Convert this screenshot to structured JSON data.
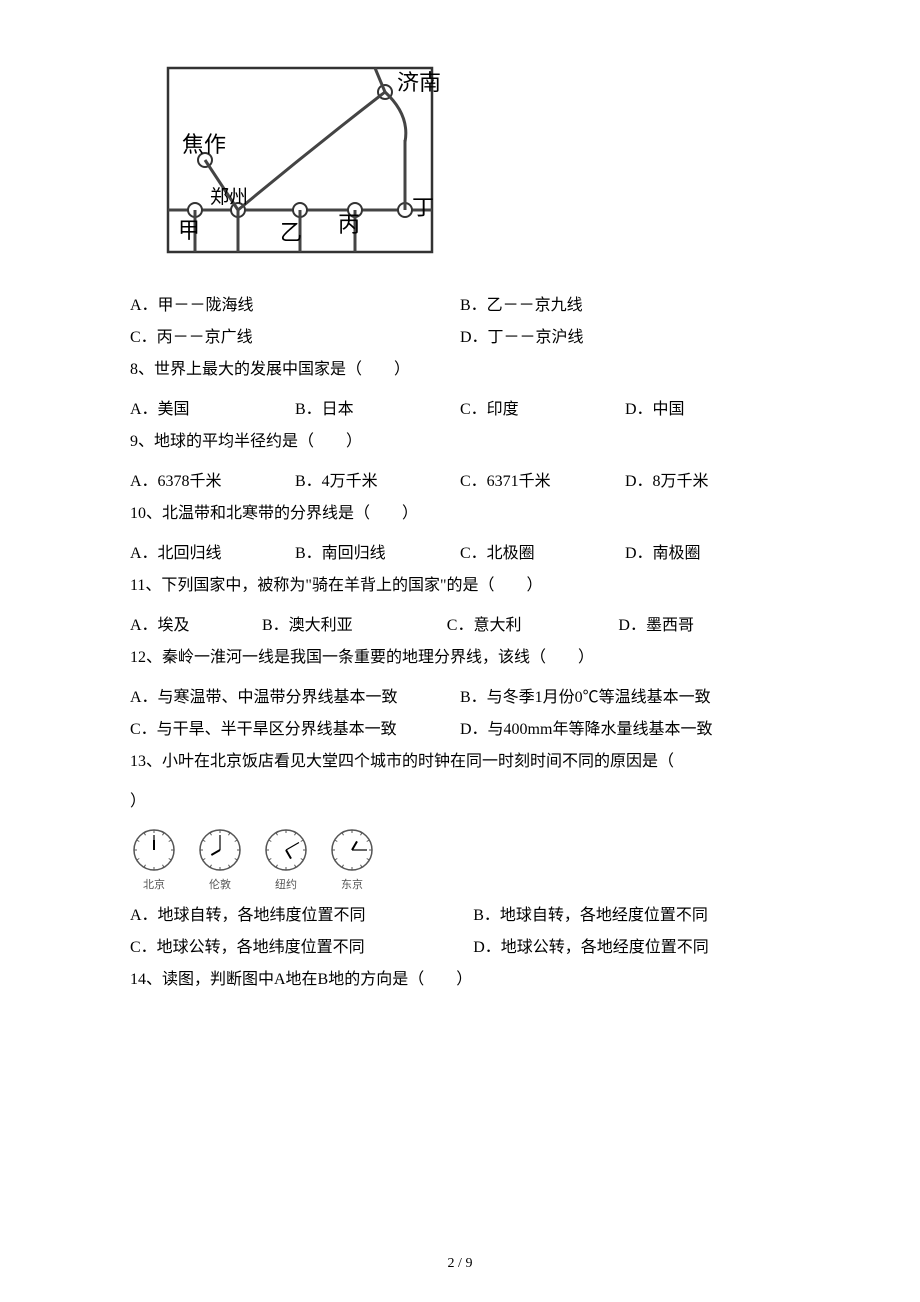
{
  "map": {
    "labels": {
      "jinan": "济南",
      "jiaozuo": "焦作",
      "zhengzhou": "郑州",
      "jia": "甲",
      "yi": "乙",
      "bing": "丙",
      "ding": "丁"
    },
    "frame_stroke": "#333333",
    "rail_stroke": "#444444",
    "node_fill": "#ffffff",
    "node_stroke": "#333333",
    "label_font_size": 17,
    "big_label_font_size": 22
  },
  "q7": {
    "optA": "A．甲－－陇海线",
    "optB": "B．乙－－京九线",
    "optC": "C．丙－－京广线",
    "optD": "D．丁－－京沪线"
  },
  "q8": {
    "stem": "8、世界上最大的发展中国家是（　　）",
    "optA": "A．美国",
    "optB": "B．日本",
    "optC": "C．印度",
    "optD": "D．中国"
  },
  "q9": {
    "stem": "9、地球的平均半径约是（　　）",
    "optA": "A．6378千米",
    "optB": "B．4万千米",
    "optC": "C．6371千米",
    "optD": "D．8万千米"
  },
  "q10": {
    "stem": "10、北温带和北寒带的分界线是（　　）",
    "optA": "A．北回归线",
    "optB": "B．南回归线",
    "optC": "C．北极圈",
    "optD": "D．南极圈"
  },
  "q11": {
    "stem": "11、下列国家中，被称为\"骑在羊背上的国家\"的是（　　）",
    "optA": "A．埃及",
    "optB": "B．澳大利亚",
    "optC": "C．意大利",
    "optD": "D．墨西哥"
  },
  "q12": {
    "stem": "12、秦岭一淮河一线是我国一条重要的地理分界线，该线（　　）",
    "optA": "A．与寒温带、中温带分界线基本一致",
    "optB": "B．与冬季1月份0℃等温线基本一致",
    "optC": "C．与干旱、半干旱区分界线基本一致",
    "optD": "D．与400mm年等降水量线基本一致"
  },
  "q13": {
    "stem_part1": "13、小叶在北京饭店看见大堂四个城市的时钟在同一时刻时间不同的原因是（　",
    "stem_part2": "）",
    "clocks": [
      {
        "label": "北京",
        "hour_angle": 0,
        "min_angle": 0
      },
      {
        "label": "伦敦",
        "hour_angle": -120,
        "min_angle": 0
      },
      {
        "label": "纽约",
        "hour_angle": 150,
        "min_angle": 60
      },
      {
        "label": "东京",
        "hour_angle": 30,
        "min_angle": 90
      }
    ],
    "clock_stroke": "#555555",
    "clock_fill": "#ffffff",
    "optA": "A．地球自转，各地纬度位置不同",
    "optB": "B．地球自转，各地经度位置不同",
    "optC": "C．地球公转，各地纬度位置不同",
    "optD": "D．地球公转，各地经度位置不同"
  },
  "q14": {
    "stem": "14、读图，判断图中A地在B地的方向是（　　）"
  },
  "page_number": "2 / 9"
}
